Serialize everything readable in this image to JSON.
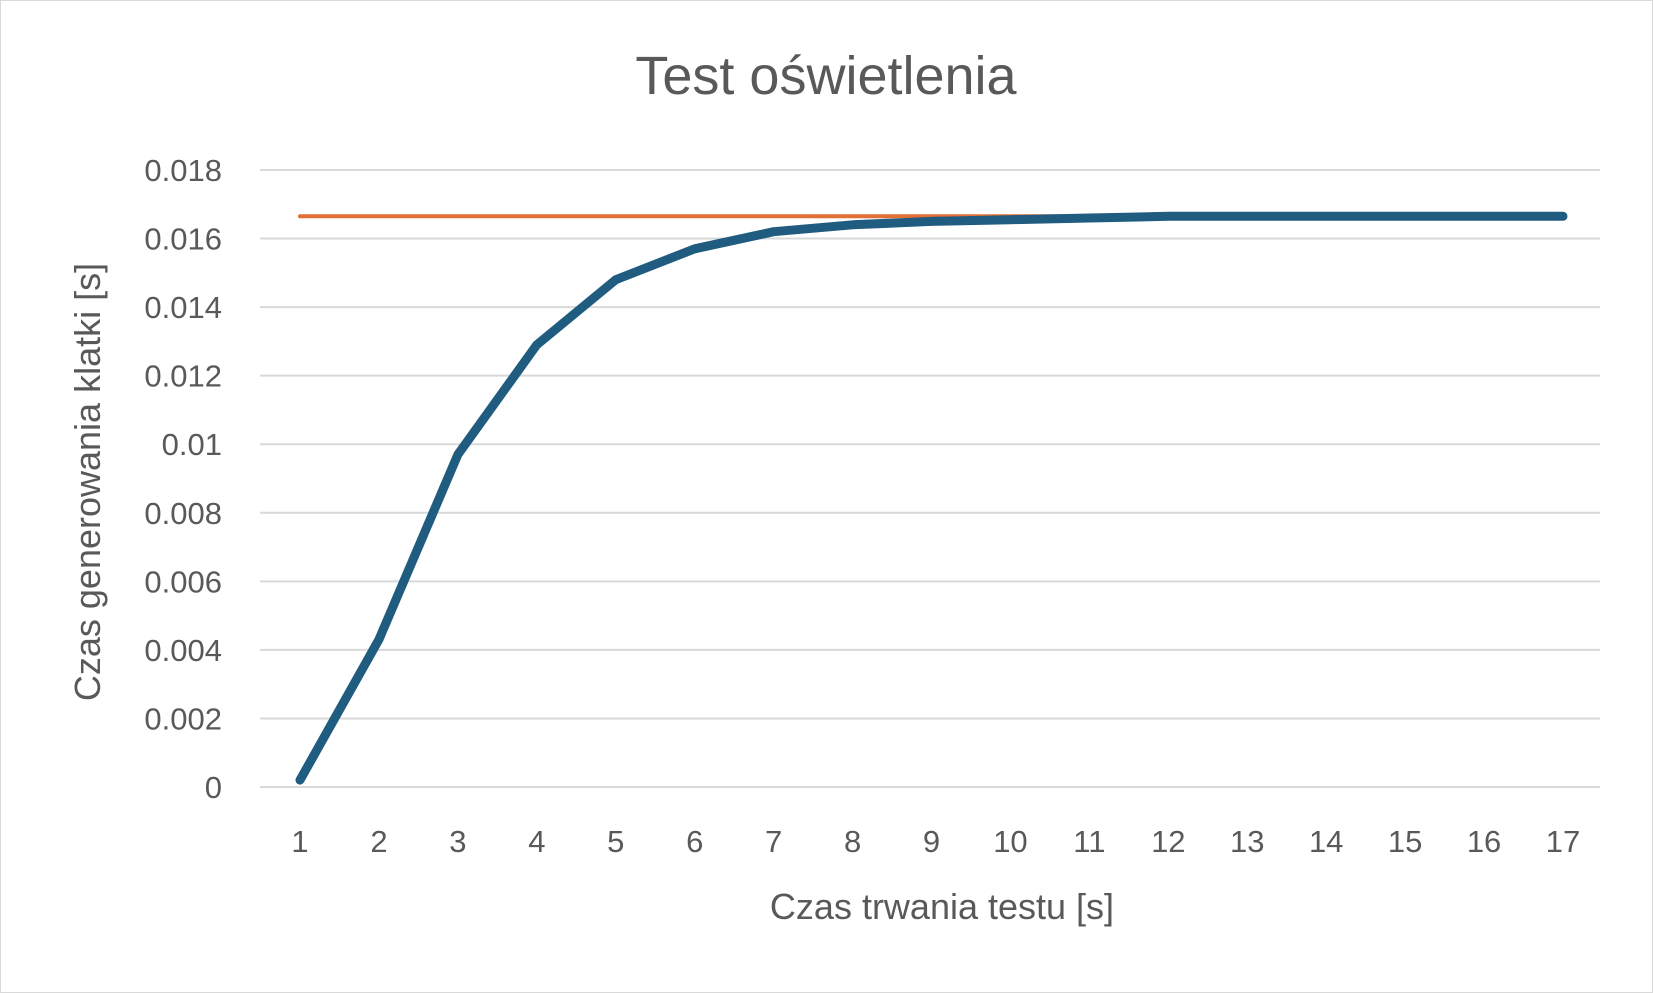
{
  "chart_data": {
    "type": "line",
    "title": "Test oświetlenia",
    "xlabel": "Czas trwania testu [s]",
    "ylabel": "Czas generowania klatki [s]",
    "x": [
      1,
      2,
      3,
      4,
      5,
      6,
      7,
      8,
      9,
      10,
      11,
      12,
      13,
      14,
      15,
      16,
      17
    ],
    "x_tick_labels": [
      "1",
      "2",
      "3",
      "4",
      "5",
      "6",
      "7",
      "8",
      "9",
      "10",
      "11",
      "12",
      "13",
      "14",
      "15",
      "16",
      "17"
    ],
    "y_tick_labels": [
      "0",
      "0.002",
      "0.004",
      "0.006",
      "0.008",
      "0.01",
      "0.012",
      "0.014",
      "0.016",
      "0.018"
    ],
    "ylim": [
      0,
      0.018
    ],
    "grid": true,
    "legend": "none",
    "series": [
      {
        "color": "#1f5c80",
        "values": [
          0.0002,
          0.0043,
          0.0097,
          0.0129,
          0.0148,
          0.0157,
          0.0162,
          0.0164,
          0.0165,
          0.01655,
          0.0166,
          0.01665,
          0.01665,
          0.01665,
          0.01665,
          0.01665,
          0.01665
        ]
      },
      {
        "color": "#e07033",
        "values": [
          0.01665,
          0.01665,
          0.01665,
          0.01665,
          0.01665,
          0.01665,
          0.01665,
          0.01665,
          0.01665,
          0.01665,
          0.01665,
          0.01665,
          0.01665,
          0.01665,
          0.01665,
          0.01665,
          0.01665
        ]
      }
    ]
  }
}
